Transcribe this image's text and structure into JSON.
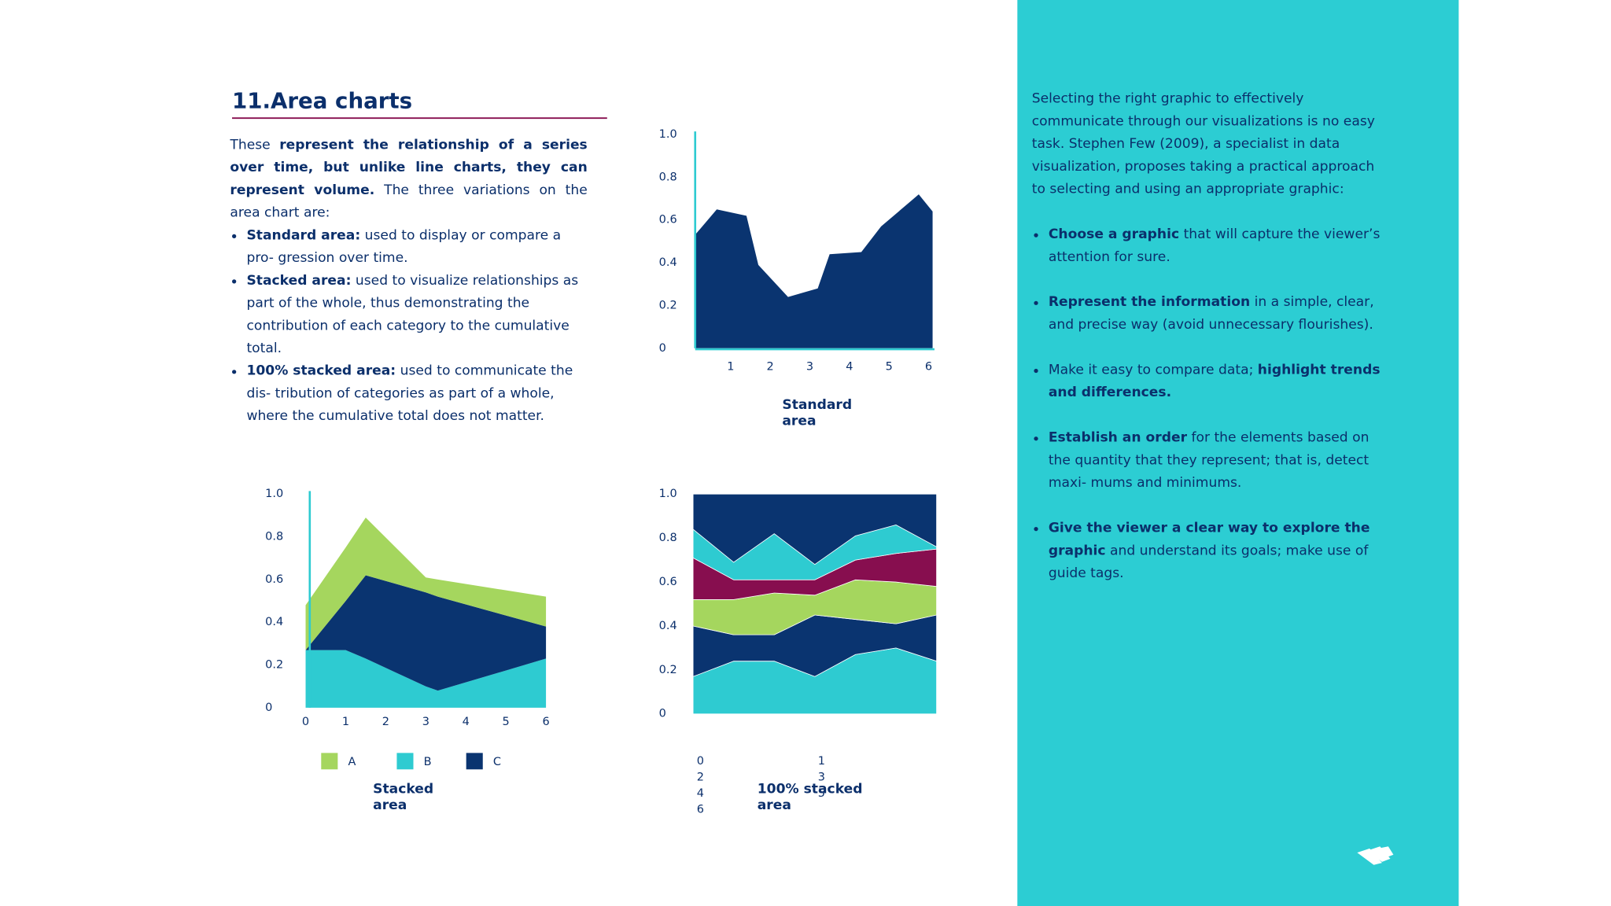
{
  "header": {
    "title": "11.Area charts"
  },
  "intro": [
    {
      "text": "These ",
      "bold": false
    },
    {
      "text": "represent the relationship of a series over time, but unlike line charts, they can represent volume.",
      "bold": true
    },
    {
      "text": " The three variations on the area chart are:",
      "bold": false
    }
  ],
  "variants": [
    [
      {
        "text": "Standard area:",
        "bold": true
      },
      {
        "text": " used to display or compare a pro- gression over time.",
        "bold": false
      }
    ],
    [
      {
        "text": "Stacked area:",
        "bold": true
      },
      {
        "text": " used to visualize relationships as part of the whole, thus demonstrating the contribution of each category to the cumulative total.",
        "bold": false
      }
    ],
    [
      {
        "text": "100% stacked area:",
        "bold": true
      },
      {
        "text": " used to communicate the dis- tribution of categories as part of a whole, where the cumulative total does not matter.",
        "bold": false
      }
    ]
  ],
  "sidebar": {
    "intro": "Selecting the right graphic to effectively communicate through our visualizations is no easy task. Stephen Few (2009), a specialist in data visualization, proposes taking a practical approach to selecting and using an appropriate graphic:",
    "points": [
      [
        {
          "text": "Choose a graphic",
          "bold": true
        },
        {
          "text": " that will capture the viewer’s attention for sure.",
          "bold": false
        }
      ],
      [
        {
          "text": "Represent the information",
          "bold": true
        },
        {
          "text": " in a simple, clear, and precise way (avoid unnecessary flourishes).",
          "bold": false
        }
      ],
      [
        {
          "text": "Make it easy to compare data; ",
          "bold": false
        },
        {
          "text": "highlight trends and differences.",
          "bold": true
        }
      ],
      [
        {
          "text": "Establish an order",
          "bold": true
        },
        {
          "text": " for the elements based on the quantity that they represent; that is, detect maxi- mums and minimums.",
          "bold": false
        }
      ],
      [
        {
          "text": "Give the viewer a clear way to explore the graphic",
          "bold": true
        },
        {
          "text": " and understand its goals; make use of guide tags.",
          "bold": false
        }
      ]
    ]
  },
  "chart_data": [
    {
      "type": "area",
      "caption": "Standard area",
      "x": [
        0.1,
        0.65,
        1.4,
        1.7,
        2.45,
        3.2,
        3.5,
        4.3,
        4.8,
        5.75,
        6.1
      ],
      "values": [
        0.53,
        0.65,
        0.62,
        0.39,
        0.24,
        0.28,
        0.44,
        0.45,
        0.57,
        0.72,
        0.64
      ],
      "color": "#0a3470",
      "xlim": [
        0,
        6.2
      ],
      "ylim": [
        0,
        1
      ],
      "xticks": [
        1,
        2,
        3,
        4,
        5,
        6
      ],
      "yticks": [
        0,
        0.2,
        0.4,
        0.6,
        0.8,
        {
          "value": 1,
          "label": "1.0"
        }
      ]
    },
    {
      "type": "stacked_area",
      "caption": "Stacked area",
      "x": [
        0,
        1,
        1.5,
        3,
        3.3,
        6
      ],
      "series": [
        {
          "name": "A",
          "color": "#a5d65e",
          "values": [
            0.21,
            0.25,
            0.27,
            0.07,
            0.08,
            0.14
          ]
        },
        {
          "name": "B",
          "color": "#2ecbd1",
          "values": [
            0.27,
            0.27,
            0.23,
            0.1,
            0.08,
            0.23
          ]
        },
        {
          "name": "C",
          "color": "#0a3470",
          "values": [
            0,
            0.23,
            0.39,
            0.44,
            0.44,
            0.15
          ]
        }
      ],
      "xlim": [
        0,
        6
      ],
      "ylim": [
        0,
        1
      ],
      "xticks": [
        0,
        1,
        2,
        3,
        4,
        5,
        6
      ],
      "yticks": [
        0,
        0.2,
        0.4,
        0.6,
        0.8,
        {
          "value": 1,
          "label": "1.0"
        }
      ]
    },
    {
      "type": "percent_area",
      "caption": "100% stacked area",
      "x": [
        0,
        1,
        2,
        3,
        4,
        5,
        6
      ],
      "series": [
        {
          "color": "#2ecbd1",
          "values": [
            0.17,
            0.24,
            0.24,
            0.17,
            0.27,
            0.3,
            0.24
          ]
        },
        {
          "color": "#0a3470",
          "values": [
            0.23,
            0.12,
            0.12,
            0.28,
            0.16,
            0.11,
            0.21
          ]
        },
        {
          "color": "#a5d65e",
          "values": [
            0.12,
            0.16,
            0.19,
            0.09,
            0.18,
            0.19,
            0.13
          ]
        },
        {
          "color": "#870e4f",
          "values": [
            0.19,
            0.09,
            0.06,
            0.07,
            0.09,
            0.13,
            0.17
          ]
        },
        {
          "color": "#2ecbd1",
          "values": [
            0.13,
            0.08,
            0.21,
            0.07,
            0.11,
            0.13,
            0.01
          ]
        },
        {
          "color": "#0a3470",
          "values": [
            0.16,
            0.31,
            0.18,
            0.32,
            0.19,
            0.14,
            0.24
          ]
        }
      ],
      "xlim": [
        0,
        6
      ],
      "ylim": [
        0,
        1
      ],
      "xticks": [
        0,
        1,
        2,
        3,
        4,
        5,
        6
      ],
      "yticks": [
        0,
        0.2,
        0.4,
        0.6,
        0.8,
        {
          "value": 1,
          "label": "1.0"
        }
      ]
    }
  ]
}
